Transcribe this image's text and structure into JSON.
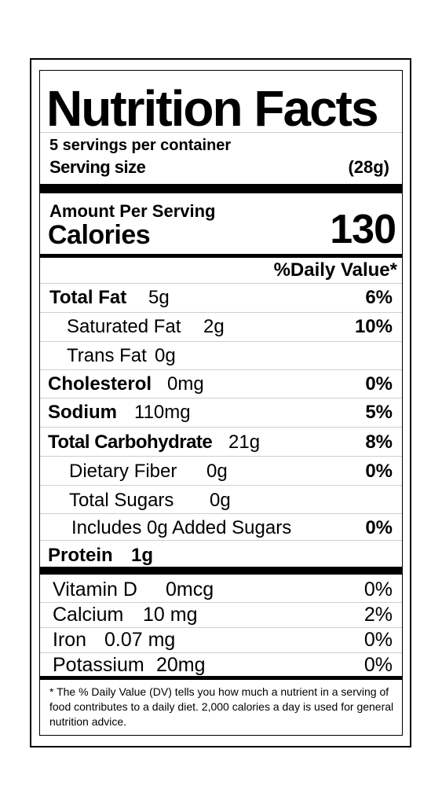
{
  "label": {
    "title": "Nutrition Facts",
    "servings_per_container": "5 servings per container",
    "serving_size_label": "Serving size",
    "serving_size_value": "(28g)",
    "amount_per_serving": "Amount Per Serving",
    "calories_label": "Calories",
    "calories_value": "130",
    "daily_value_header": "%Daily Value*",
    "nutrients": [
      {
        "name": "Total Fat",
        "amount": "5g",
        "dv": "6%"
      },
      {
        "name": "Saturated Fat",
        "amount": "2g",
        "dv": "10%"
      },
      {
        "name": "Trans Fat",
        "amount": "0g",
        "dv": ""
      },
      {
        "name": "Cholesterol",
        "amount": "0mg",
        "dv": "0%"
      },
      {
        "name": "Sodium",
        "amount": "110mg",
        "dv": "5%"
      },
      {
        "name": "Total Carbohydrate",
        "amount": "21g",
        "dv": "8%"
      },
      {
        "name": "Dietary Fiber",
        "amount": "0g",
        "dv": "0%"
      },
      {
        "name": "Total Sugars",
        "amount": "0g",
        "dv": ""
      },
      {
        "name": "Includes 0g Added Sugars",
        "amount": "",
        "dv": "0%"
      },
      {
        "name": "Protein",
        "amount": "1g",
        "dv": ""
      }
    ],
    "vitamins": [
      {
        "name": "Vitamin D",
        "amount": "0mcg",
        "dv": "0%"
      },
      {
        "name": "Calcium",
        "amount": "10 mg",
        "dv": "2%"
      },
      {
        "name": "Iron",
        "amount": "0.07 mg",
        "dv": "0%"
      },
      {
        "name": "Potassium",
        "amount": "20mg",
        "dv": "0%"
      }
    ],
    "footnote": "* The % Daily Value (DV) tells you how much a nutrient in a serving of food contributes to a daily diet. 2,000 calories a day is used for general nutrition advice."
  }
}
